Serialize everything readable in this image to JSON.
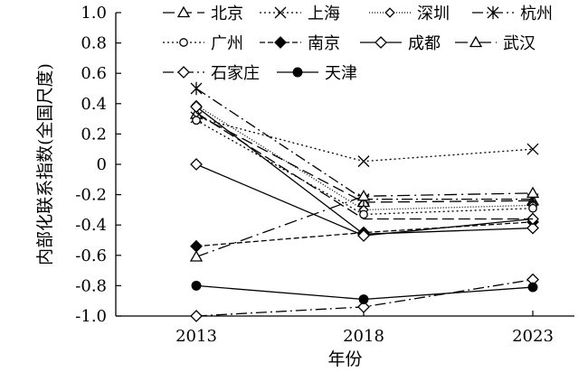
{
  "chart_data": {
    "type": "line",
    "title": "",
    "xlabel": "年份",
    "ylabel": "内部化联系指数(全国尺度)",
    "x": [
      2013,
      2018,
      2023
    ],
    "x_tick_labels": [
      "2013",
      "2018",
      "2023"
    ],
    "ylim": [
      -1.0,
      1.0
    ],
    "y_ticks": [
      1.0,
      0.8,
      0.6,
      0.4,
      0.2,
      0,
      -0.2,
      -0.4,
      -0.6,
      -0.8,
      -1.0
    ],
    "y_tick_labels": [
      "1.0",
      "0.8",
      "0.6",
      "0.4",
      "0.2",
      "0",
      "-0.2",
      "-0.4",
      "-0.6",
      "-0.8",
      "-1.0"
    ],
    "grid": false,
    "legend_position": "top",
    "series": [
      {
        "name": "北京",
        "values": [
          0.33,
          -0.25,
          -0.24
        ],
        "dash": "13,6",
        "marker": "triangle-open"
      },
      {
        "name": "上海",
        "values": [
          0.31,
          0.02,
          0.1
        ],
        "dash": "2,3",
        "marker": "x"
      },
      {
        "name": "深圳",
        "values": [
          0.39,
          -0.3,
          -0.27
        ],
        "dash": "1,2",
        "marker": "diamond-open-small"
      },
      {
        "name": "杭州",
        "values": [
          0.5,
          -0.23,
          -0.23
        ],
        "dash": "12,4,2,4",
        "marker": "star"
      },
      {
        "name": "广州",
        "values": [
          0.29,
          -0.33,
          -0.29
        ],
        "dash": "2,3",
        "marker": "circle-open"
      },
      {
        "name": "南京",
        "values": [
          -0.54,
          -0.45,
          -0.38
        ],
        "dash": "6,3",
        "marker": "diamond-filled"
      },
      {
        "name": "成都",
        "values": [
          0.38,
          -0.46,
          -0.42
        ],
        "dash": "",
        "marker": "diamond-open"
      },
      {
        "name": "武汉",
        "values": [
          -0.61,
          -0.21,
          -0.19
        ],
        "dash": "14,5,2,5",
        "marker": "triangle-open"
      },
      {
        "name": "石家庄",
        "values": [
          -1.0,
          -0.94,
          -0.76
        ],
        "dash": "12,4,2,4",
        "marker": "diamond-open"
      },
      {
        "name": "天津",
        "values": [
          -0.8,
          -0.89,
          -0.81
        ],
        "dash": "",
        "marker": "circle-filled"
      },
      {
        "name": "",
        "values": [
          0.0,
          -0.47,
          -0.36
        ],
        "dash": "",
        "marker": "diamond-open"
      },
      {
        "name": "",
        "values": [
          0.34,
          -0.36,
          -0.36
        ],
        "dash": "13,5",
        "marker": "none"
      }
    ]
  }
}
